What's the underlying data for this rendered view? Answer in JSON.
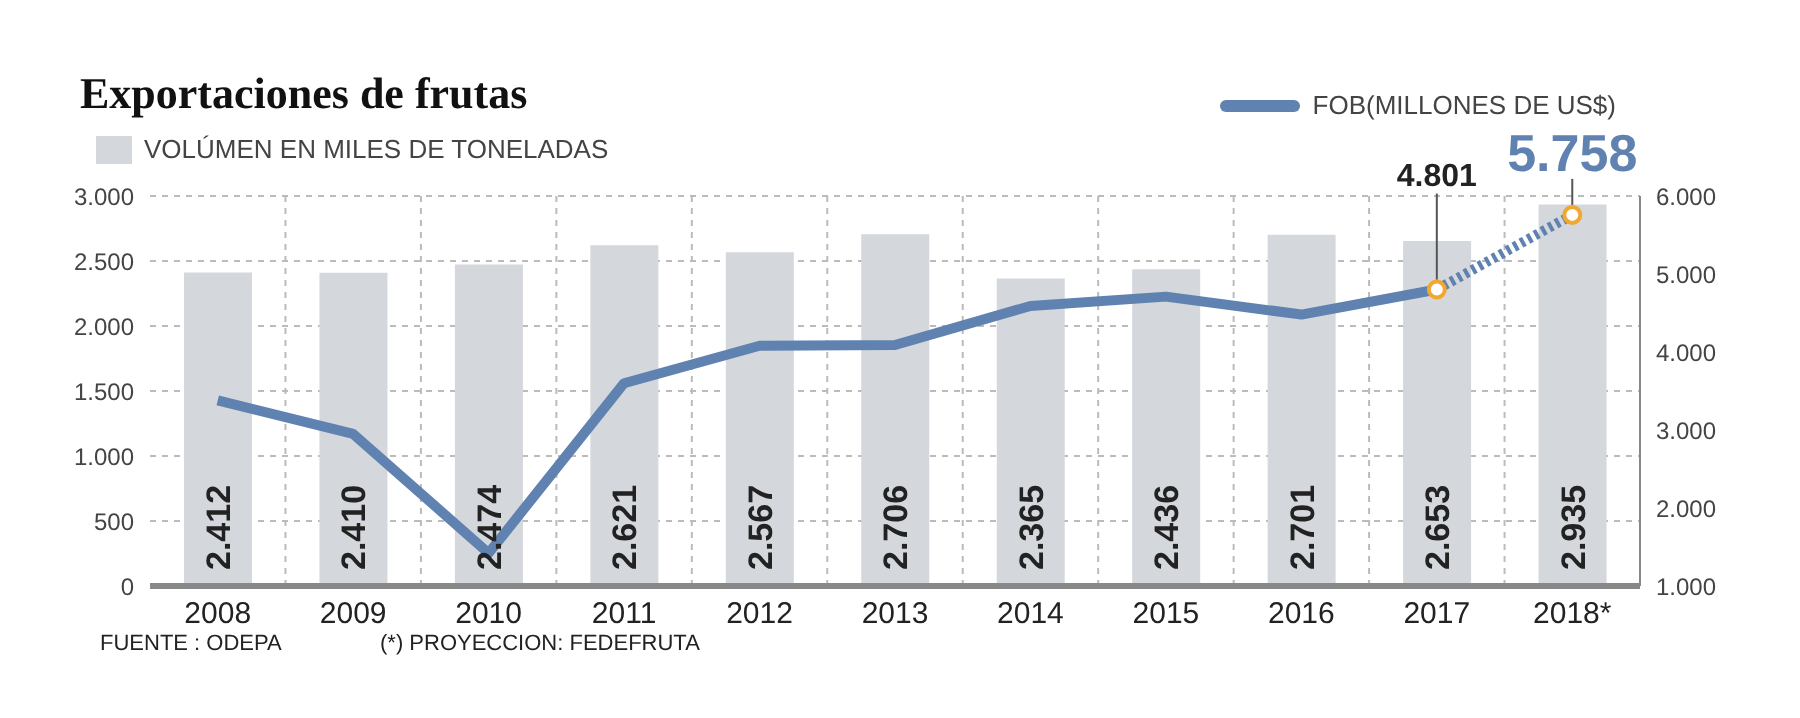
{
  "chart_data": {
    "type": "bar",
    "title": "Exportaciones de frutas",
    "categories": [
      "2008",
      "2009",
      "2010",
      "2011",
      "2012",
      "2013",
      "2014",
      "2015",
      "2016",
      "2017",
      "2018*"
    ],
    "series": [
      {
        "name": "VOLÚMEN EN MILES DE TONELADAS",
        "color": "#d4d7dc",
        "values": [
          2412,
          2410,
          2474,
          2621,
          2567,
          2706,
          2365,
          2436,
          2701,
          2653,
          2935
        ],
        "value_labels": [
          "2.412",
          "2.410",
          "2.474",
          "2.621",
          "2.567",
          "2.706",
          "2.365",
          "2.436",
          "2.701",
          "2.653",
          "2.935"
        ]
      },
      {
        "name": "FOB(MILLONES DE US$)",
        "type": "line",
        "axis": "y2",
        "color": "#5f82b0",
        "line_style": "solid",
        "marker": "none",
        "values": [
          3380,
          2950,
          1420,
          3600,
          4080,
          4090,
          4590,
          4710,
          4480,
          4801,
          null
        ]
      },
      {
        "type": "line",
        "axis": "y2",
        "color": "#5f82b0",
        "line_style": "dotted",
        "marker": "circle",
        "values": [
          null,
          null,
          null,
          null,
          null,
          null,
          null,
          null,
          null,
          4801,
          5758
        ],
        "value_labels": [
          null,
          null,
          null,
          null,
          null,
          null,
          null,
          null,
          null,
          "4.801",
          "5.758"
        ]
      }
    ],
    "ylim": [
      0,
      3000
    ],
    "yticks": [
      {
        "value": 0,
        "label": "0"
      },
      {
        "value": 500,
        "label": "500"
      },
      {
        "value": 1000,
        "label": "1.000"
      },
      {
        "value": 1500,
        "label": "1.500"
      },
      {
        "value": 2000,
        "label": "2.000"
      },
      {
        "value": 2500,
        "label": "2.500"
      },
      {
        "value": 3000,
        "label": "3.000"
      }
    ],
    "y2lim": [
      1000,
      6000
    ],
    "y2ticks": [
      {
        "value": 1000,
        "label": "1.000"
      },
      {
        "value": 2000,
        "label": "2.000"
      },
      {
        "value": 3000,
        "label": "3.000"
      },
      {
        "value": 4000,
        "label": "4.000"
      },
      {
        "value": 5000,
        "label": "5.000"
      },
      {
        "value": 6000,
        "label": "6.000"
      }
    ],
    "grid": true,
    "legend": "top",
    "annotations": [
      "FUENTE : ODEPA",
      "(*) PROYECCION: FEDEFRUTA"
    ]
  }
}
